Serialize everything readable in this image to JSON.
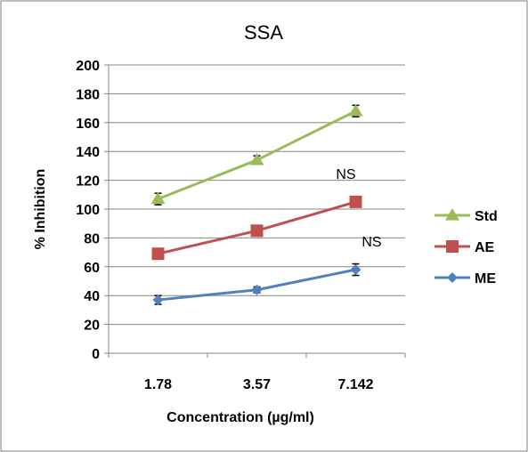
{
  "chart_data": {
    "type": "line",
    "title": "SSA",
    "xlabel": "Concentration (µg/ml)",
    "ylabel": "% Inhibition",
    "categories": [
      "1.78",
      "3.57",
      "7.142"
    ],
    "ylim": [
      0,
      200
    ],
    "yticks": [
      0,
      20,
      40,
      60,
      80,
      100,
      120,
      140,
      160,
      180,
      200
    ],
    "grid": "horizontal",
    "legend_position": "right",
    "series": [
      {
        "name": "Std",
        "color": "#9BBB59",
        "marker": "triangle",
        "values": [
          107,
          134,
          168
        ],
        "error": [
          4,
          3,
          4
        ]
      },
      {
        "name": "AE",
        "color": "#C0504D",
        "marker": "square",
        "values": [
          69,
          85,
          105
        ],
        "error": [
          0,
          0,
          0
        ]
      },
      {
        "name": "ME",
        "color": "#4F81BD",
        "marker": "diamond",
        "values": [
          37,
          44,
          58
        ],
        "error": [
          3,
          2,
          4
        ]
      }
    ],
    "annotations": [
      {
        "text": "NS",
        "category": "7.142",
        "y": 121
      },
      {
        "text": "NS",
        "category": "7.142",
        "y": 74
      }
    ]
  }
}
